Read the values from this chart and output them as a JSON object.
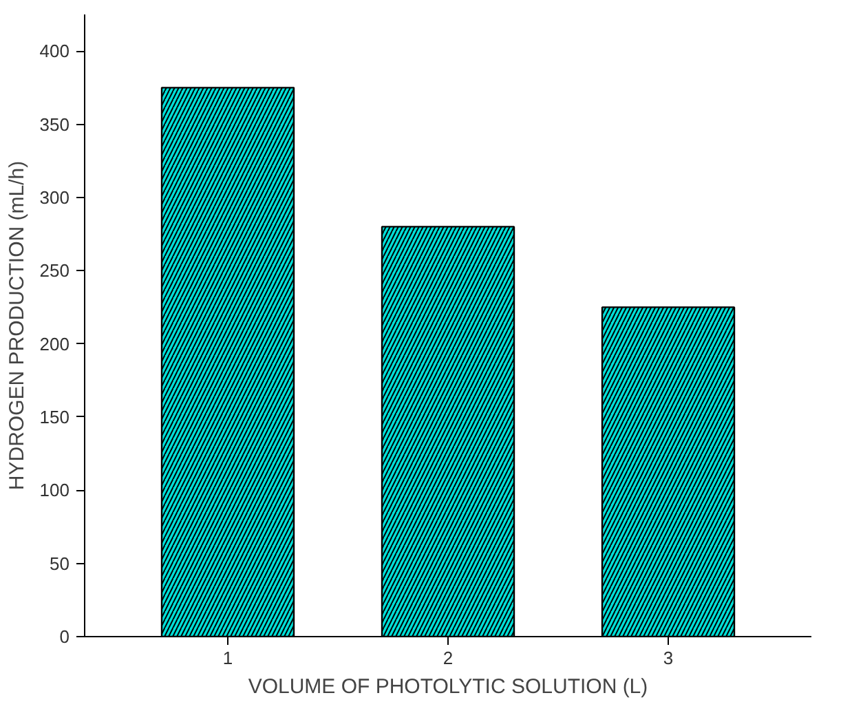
{
  "chart_data": {
    "type": "bar",
    "xlabel": "VOLUME OF PHOTOLYTIC SOLUTION (L)",
    "ylabel": "HYDROGEN PRODUCTION (mL/h)",
    "categories": [
      "1",
      "2",
      "3"
    ],
    "values": [
      375,
      280,
      225
    ],
    "color": "#00e0d8",
    "ylim": [
      0,
      425
    ],
    "yticks": [
      0,
      50,
      100,
      150,
      200,
      250,
      300,
      350,
      400
    ]
  }
}
